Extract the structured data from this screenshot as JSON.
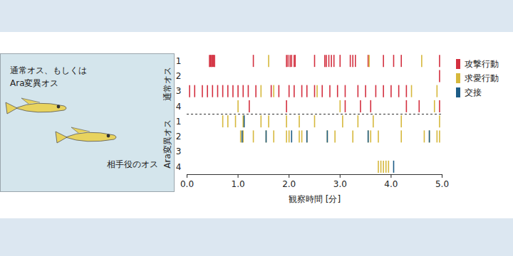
{
  "chart_data": {
    "type": "raster",
    "annotations": [
      [
        "通常オス、もしくは",
        "Ara変異オス"
      ],
      [
        "相手役のオス"
      ]
    ],
    "x_label": "観察時間 [分]",
    "xlim": [
      0,
      5
    ],
    "xticks": [
      0,
      1,
      2,
      3,
      4,
      5
    ],
    "categories": [
      "1",
      "2",
      "3",
      "4",
      "1",
      "2",
      "3",
      "4"
    ],
    "row_groups": [
      "通常オス",
      "通常オス",
      "通常オス",
      "通常オス",
      "Ara変異オス",
      "Ara変異オス",
      "Ara変異オス",
      "Ara変異オス"
    ],
    "legend": "right",
    "series": [
      {
        "name": "攻撃行動",
        "color": "#d32f3f",
        "values": [
          [
            0.44,
            0.46,
            0.48,
            0.5,
            0.52,
            0.54,
            1.3,
            1.95,
            1.98,
            2.02,
            2.05,
            2.1,
            2.12,
            2.5,
            2.7,
            2.73,
            2.78,
            2.83,
            2.88,
            3.0,
            3.2,
            3.25,
            3.3,
            3.55,
            3.85,
            4.05,
            4.2,
            4.95
          ],
          [
            4.95
          ],
          [
            0.05,
            0.15,
            0.3,
            0.4,
            0.5,
            0.6,
            0.7,
            0.8,
            0.9,
            1.0,
            1.1,
            1.2,
            1.35,
            1.65,
            1.8,
            2.0,
            2.1,
            2.25,
            2.35,
            2.5,
            2.65,
            2.8,
            2.95,
            3.1,
            3.35,
            3.5,
            3.7,
            3.85,
            4.0,
            4.15,
            4.3
          ],
          [
            1.22,
            1.95,
            3.1,
            3.4,
            3.6,
            4.3,
            4.55,
            4.95
          ],
          [],
          [],
          [],
          []
        ]
      },
      {
        "name": "求愛行動",
        "color": "#d6b83c",
        "values": [
          [
            1.6,
            3.57,
            4.6
          ],
          [],
          [
            1.45,
            1.7,
            2.55,
            4.4,
            4.9
          ],
          [
            1.0,
            3.0,
            4.85
          ],
          [
            0.7,
            0.8,
            0.95,
            1.1,
            1.45,
            1.6,
            1.95,
            2.2,
            2.5,
            3.05,
            3.35,
            3.65,
            4.2,
            4.95
          ],
          [
            1.05,
            1.1,
            1.3,
            1.55,
            1.7,
            1.95,
            2.0,
            2.2,
            2.25,
            2.35,
            2.75,
            2.9,
            3.25,
            3.55,
            3.6,
            3.75,
            4.2,
            4.65,
            4.75,
            4.9,
            4.95
          ],
          [],
          [
            3.75,
            3.8,
            3.85,
            3.9,
            3.95
          ]
        ]
      },
      {
        "name": "交接",
        "color": "#1d5c86",
        "values": [
          [],
          [],
          [],
          [],
          [
            1.12
          ],
          [
            1.08,
            1.55,
            2.05,
            2.35,
            2.75,
            3.55,
            4.75
          ],
          [],
          [
            4.05
          ]
        ]
      }
    ]
  }
}
